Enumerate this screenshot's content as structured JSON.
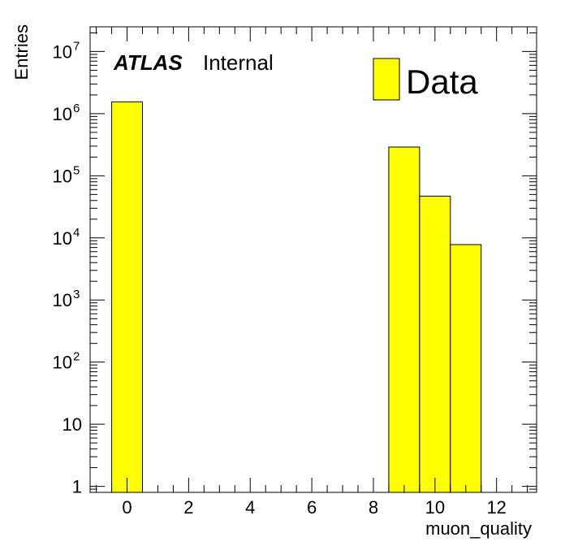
{
  "chart_data": {
    "type": "bar",
    "title": "",
    "xlabel": "muon_quality",
    "ylabel": "Entries",
    "xlim": [
      -1.2,
      13.3
    ],
    "ylim": [
      0.8,
      25000000
    ],
    "yscale": "log",
    "grid": false,
    "legend_position": "top-right",
    "bin_width": 1,
    "bars": [
      {
        "x": 0,
        "value": 1550000
      },
      {
        "x": 9,
        "value": 290000
      },
      {
        "x": 10,
        "value": 47000
      },
      {
        "x": 11,
        "value": 7800
      }
    ],
    "series": [
      {
        "name": "Data",
        "color": "#ffff00"
      }
    ],
    "x_ticks": [
      {
        "value": 0,
        "label": "0"
      },
      {
        "value": 2,
        "label": "2"
      },
      {
        "value": 4,
        "label": "4"
      },
      {
        "value": 6,
        "label": "6"
      },
      {
        "value": 8,
        "label": "8"
      },
      {
        "value": 10,
        "label": "10"
      },
      {
        "value": 12,
        "label": "12"
      }
    ],
    "y_ticks": [
      {
        "value": 1,
        "base": "1",
        "exp": ""
      },
      {
        "value": 10,
        "base": "10",
        "exp": ""
      },
      {
        "value": 100,
        "base": "10",
        "exp": "2"
      },
      {
        "value": 1000,
        "base": "10",
        "exp": "3"
      },
      {
        "value": 10000,
        "base": "10",
        "exp": "4"
      },
      {
        "value": 100000,
        "base": "10",
        "exp": "5"
      },
      {
        "value": 1000000,
        "base": "10",
        "exp": "6"
      },
      {
        "value": 10000000,
        "base": "10",
        "exp": "7"
      }
    ],
    "annotations": {
      "experiment": "ATLAS",
      "status": "Internal"
    },
    "legend": [
      {
        "label": "Data",
        "color": "#ffff00"
      }
    ]
  }
}
